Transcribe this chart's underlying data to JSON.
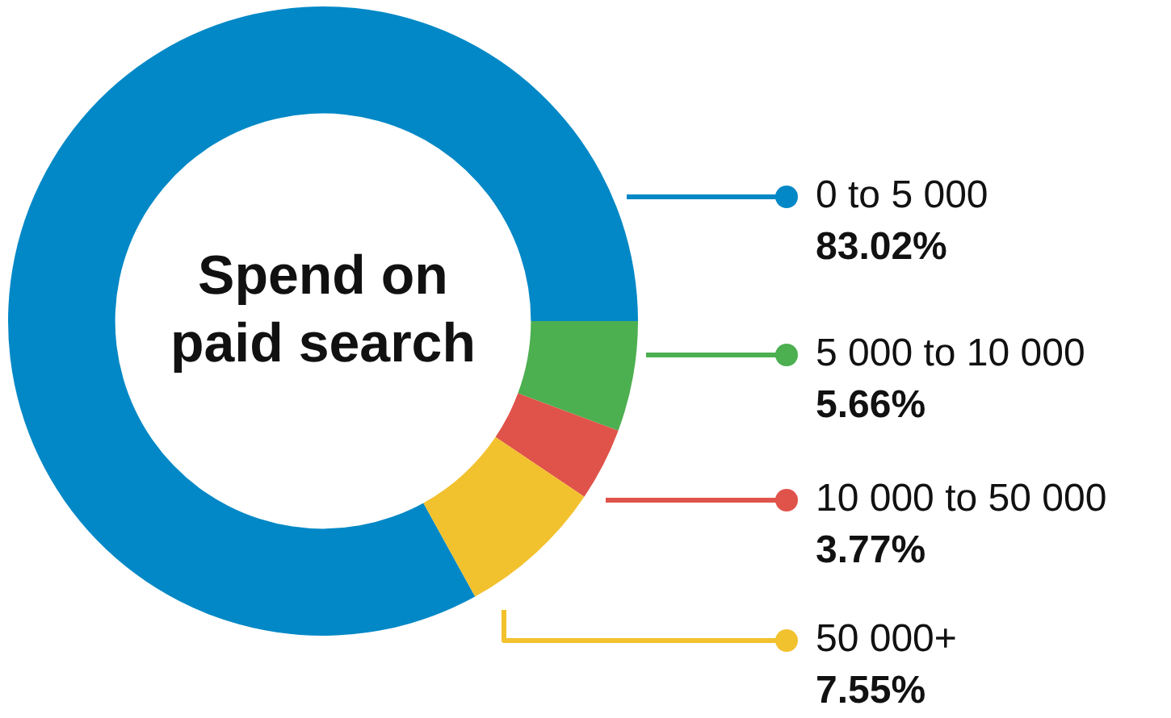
{
  "chart_data": {
    "type": "donut",
    "title": "Spend on paid search",
    "categories": [
      "0 to 5 000",
      "5 000 to 10 000",
      "10 000 to 50 000",
      "50 000+"
    ],
    "values": [
      83.02,
      5.66,
      3.77,
      7.55
    ],
    "value_labels": [
      "83.02%",
      "5.66%",
      "3.77%",
      "7.55%"
    ],
    "colors": [
      "#0288c6",
      "#4caf50",
      "#e0534a",
      "#f2c12e"
    ],
    "legend": "right"
  }
}
